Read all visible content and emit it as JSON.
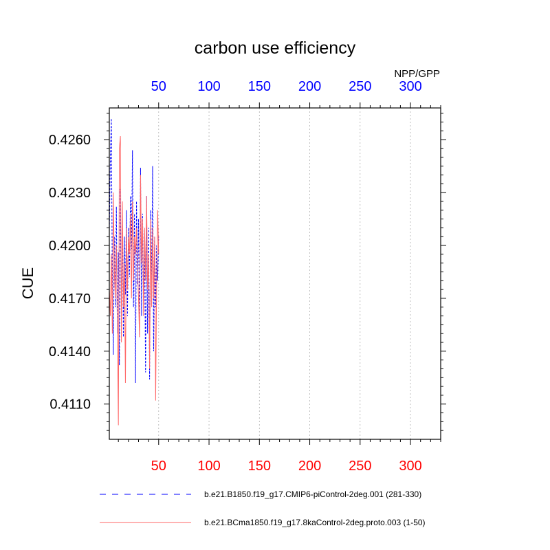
{
  "chart_data": {
    "type": "line",
    "title": "carbon use efficiency",
    "subtitle": "NPP/GPP",
    "ylabel": "CUE",
    "xlabel": "",
    "xlim": [
      1,
      330
    ],
    "ylim": [
      0.409,
      0.4278
    ],
    "x_ticks": [
      50,
      100,
      150,
      200,
      250,
      300
    ],
    "x_tick_labels": [
      "50",
      "100",
      "150",
      "200",
      "250",
      "300"
    ],
    "y_ticks": [
      0.411,
      0.414,
      0.417,
      0.42,
      0.423,
      0.426
    ],
    "y_tick_labels": [
      "0.4110",
      "0.4140",
      "0.4170",
      "0.4200",
      "0.4230",
      "0.4260"
    ],
    "grid": "vertical dotted",
    "colors": {
      "top_axis_labels": "#0000ff",
      "bottom_axis_labels": "#ff0000",
      "series_blue": "#0000ff",
      "series_red": "#ff6666"
    },
    "series": [
      {
        "name": "b.e21.B1850.f19_g17.CMIP6-piControl-2deg.001 (281-330)",
        "color": "#0000ff",
        "dash": "dashed",
        "x": [
          1,
          2,
          3,
          4,
          5,
          6,
          7,
          8,
          9,
          10,
          11,
          12,
          13,
          14,
          15,
          16,
          17,
          18,
          19,
          20,
          21,
          22,
          23,
          24,
          25,
          26,
          27,
          28,
          29,
          30,
          31,
          32,
          33,
          34,
          35,
          36,
          37,
          38,
          39,
          40,
          41,
          42,
          43,
          44,
          45,
          46,
          47,
          48,
          49,
          50
        ],
        "values": [
          0.4208,
          0.4248,
          0.4272,
          0.4178,
          0.4138,
          0.4205,
          0.4165,
          0.4222,
          0.415,
          0.4196,
          0.4132,
          0.4232,
          0.4158,
          0.4215,
          0.4148,
          0.4205,
          0.4172,
          0.422,
          0.416,
          0.421,
          0.4182,
          0.4228,
          0.4198,
          0.4254,
          0.4165,
          0.4218,
          0.4122,
          0.4225,
          0.4178,
          0.4215,
          0.4148,
          0.4244,
          0.416,
          0.4218,
          0.417,
          0.42,
          0.4128,
          0.4228,
          0.415,
          0.421,
          0.4124,
          0.422,
          0.4175,
          0.4245,
          0.414,
          0.4205,
          0.4165,
          0.42,
          0.418,
          0.4205
        ]
      },
      {
        "name": "b.e21.BCma1850.f19_g17.8kaControl-2deg.proto.003 (1-50)",
        "color": "#ff6666",
        "dash": "solid",
        "x": [
          1,
          2,
          3,
          4,
          5,
          6,
          7,
          8,
          9,
          10,
          11,
          12,
          13,
          14,
          15,
          16,
          17,
          18,
          19,
          20,
          21,
          22,
          23,
          24,
          25,
          26,
          27,
          28,
          29,
          30,
          31,
          32,
          33,
          34,
          35,
          36,
          37,
          38,
          39,
          40,
          41,
          42,
          43,
          44,
          45,
          46,
          47,
          48,
          49,
          50
        ],
        "values": [
          0.4175,
          0.416,
          0.4195,
          0.415,
          0.423,
          0.4185,
          0.417,
          0.42,
          0.4155,
          0.4098,
          0.4255,
          0.4262,
          0.4145,
          0.4225,
          0.4165,
          0.419,
          0.4122,
          0.421,
          0.4175,
          0.4205,
          0.4195,
          0.4218,
          0.417,
          0.4225,
          0.418,
          0.4205,
          0.4195,
          0.421,
          0.4185,
          0.417,
          0.4148,
          0.424,
          0.419,
          0.4215,
          0.416,
          0.421,
          0.418,
          0.4228,
          0.4175,
          0.4195,
          0.413,
          0.4215,
          0.4165,
          0.421,
          0.417,
          0.4205,
          0.4112,
          0.418,
          0.422,
          0.4195
        ]
      }
    ]
  }
}
